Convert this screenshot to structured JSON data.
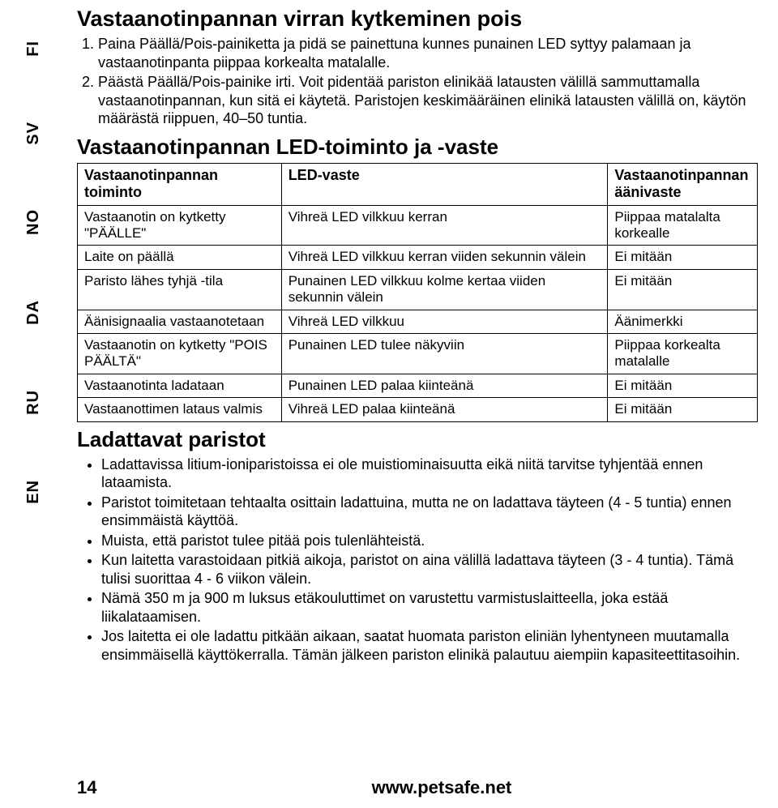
{
  "langs": [
    "FI",
    "SV",
    "NO",
    "DA",
    "RU",
    "EN"
  ],
  "title1": "Vastaanotinpannan virran kytkeminen pois",
  "steps": [
    "Paina Päällä/Pois-painiketta ja pidä se painettuna kunnes punainen LED syttyy palamaan ja vastaanotinpanta piippaa korkealta matalalle.",
    "Päästä Päällä/Pois-painike irti. Voit pidentää pariston elinikää latausten välillä sammuttamalla vastaanotinpannan, kun sitä ei käytetä. Paristojen keskimääräinen elinikä latausten välillä on, käytön määrästä riippuen, 40–50 tuntia."
  ],
  "title2": "Vastaanotinpannan LED-toiminto ja -vaste",
  "table": {
    "header": [
      "Vastaanotinpannan toiminto",
      "LED-vaste",
      "Vastaanotinpannan äänivaste"
    ],
    "rows": [
      [
        "Vastaanotin on kytketty \"PÄÄLLE\"",
        "Vihreä LED vilkkuu kerran",
        "Piippaa matalalta korkealle"
      ],
      [
        "Laite on päällä",
        "Vihreä LED vilkkuu kerran viiden sekunnin välein",
        "Ei mitään"
      ],
      [
        "Paristo lähes tyhjä -tila",
        "Punainen LED vilkkuu kolme kertaa viiden sekunnin välein",
        "Ei mitään"
      ],
      [
        "Äänisignaalia vastaanotetaan",
        "Vihreä LED vilkkuu",
        "Äänimerkki"
      ],
      [
        "Vastaanotin on kytketty \"POIS PÄÄLTÄ\"",
        "Punainen LED tulee näkyviin",
        "Piippaa korkealta matalalle"
      ],
      [
        "Vastaanotinta ladataan",
        "Punainen LED palaa kiinteänä",
        "Ei mitään"
      ],
      [
        "Vastaanottimen lataus valmis",
        "Vihreä LED palaa kiinteänä",
        "Ei mitään"
      ]
    ]
  },
  "title3": "Ladattavat paristot",
  "bullets": [
    "Ladattavissa litium-ioniparistoissa ei ole muistiominaisuutta eikä niitä tarvitse tyhjentää ennen lataamista.",
    "Paristot toimitetaan tehtaalta osittain ladattuina, mutta ne on ladattava täyteen (4 - 5 tuntia) ennen ensimmäistä käyttöä.",
    "Muista, että paristot tulee pitää pois tulenlähteistä.",
    "Kun laitetta varastoidaan pitkiä aikoja, paristot on aina välillä ladattava täyteen (3 - 4 tuntia). Tämä tulisi suorittaa 4 - 6 viikon välein.",
    "Nämä 350 m ja 900 m luksus etäkouluttimet on varustettu varmistuslaitteella, joka estää liikalataamisen.",
    "Jos laitetta ei ole ladattu pitkään aikaan, saatat huomata pariston eliniän lyhentyneen muutamalla ensimmäisellä käyttökerralla. Tämän jälkeen pariston elinikä palautuu aiempiin kapasiteettitasoihin."
  ],
  "page_number": "14",
  "footer_url": "www.petsafe.net"
}
